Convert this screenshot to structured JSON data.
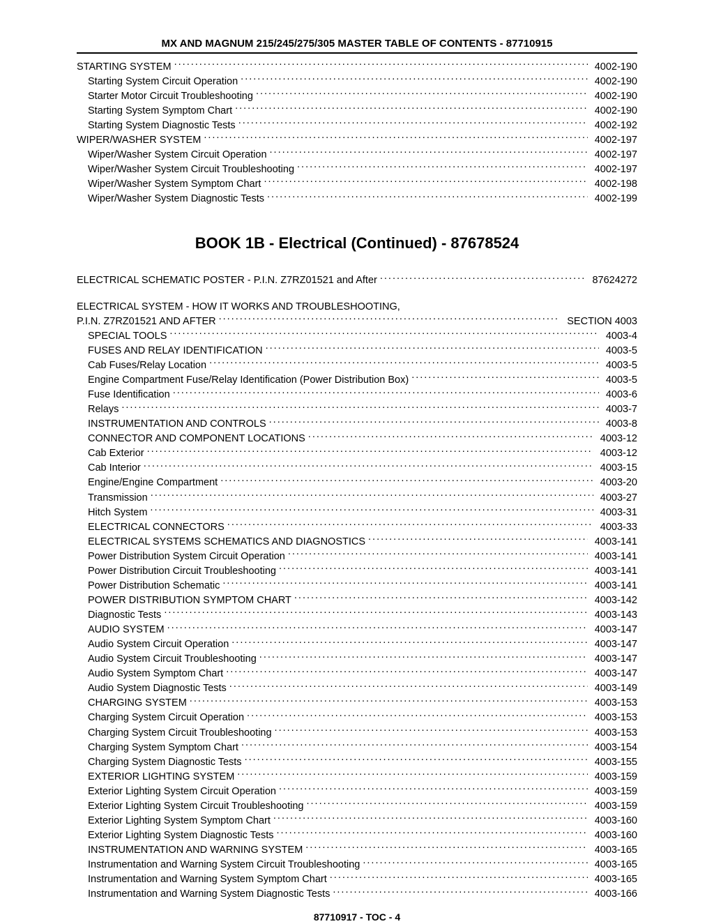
{
  "header": {
    "title": "MX AND MAGNUM 215/245/275/305 MASTER TABLE OF CONTENTS - 87710915"
  },
  "top_section": [
    {
      "label": "STARTING SYSTEM",
      "page": "4002-190",
      "indent": 0
    },
    {
      "label": "Starting System Circuit Operation",
      "page": "4002-190",
      "indent": 1
    },
    {
      "label": "Starter Motor Circuit Troubleshooting",
      "page": "4002-190",
      "indent": 1
    },
    {
      "label": "Starting System Symptom Chart",
      "page": "4002-190",
      "indent": 1
    },
    {
      "label": "Starting System Diagnostic Tests",
      "page": "4002-192",
      "indent": 1
    },
    {
      "label": "WIPER/WASHER SYSTEM",
      "page": "4002-197",
      "indent": 0
    },
    {
      "label": "Wiper/Washer System Circuit Operation",
      "page": "4002-197",
      "indent": 1
    },
    {
      "label": "Wiper/Washer System Circuit Troubleshooting",
      "page": "4002-197",
      "indent": 1
    },
    {
      "label": "Wiper/Washer System Symptom Chart",
      "page": "4002-198",
      "indent": 1
    },
    {
      "label": "Wiper/Washer System Diagnostic Tests",
      "page": "4002-199",
      "indent": 1
    }
  ],
  "book_title": "BOOK 1B - Electrical (Continued) - 87678524",
  "poster": {
    "label": "ELECTRICAL SCHEMATIC POSTER - P.I.N. Z7RZ01521 and After",
    "page": "87624272"
  },
  "system_header_line1": "ELECTRICAL SYSTEM - HOW IT WORKS AND TROUBLESHOOTING,",
  "system_header_line2": {
    "label": "P.I.N. Z7RZ01521 AND AFTER",
    "page": "SECTION 4003"
  },
  "main_section": [
    {
      "label": "SPECIAL TOOLS",
      "page": "4003-4",
      "indent": 1
    },
    {
      "label": "FUSES AND RELAY IDENTIFICATION",
      "page": "4003-5",
      "indent": 1
    },
    {
      "label": "Cab Fuses/Relay Location",
      "page": "4003-5",
      "indent": 2
    },
    {
      "label": "Engine Compartment Fuse/Relay Identification (Power Distribution Box)",
      "page": "4003-5",
      "indent": 2
    },
    {
      "label": "Fuse Identification",
      "page": "4003-6",
      "indent": 2
    },
    {
      "label": "Relays",
      "page": "4003-7",
      "indent": 2
    },
    {
      "label": "INSTRUMENTATION AND CONTROLS",
      "page": "4003-8",
      "indent": 1
    },
    {
      "label": "CONNECTOR AND COMPONENT LOCATIONS",
      "page": "4003-12",
      "indent": 1
    },
    {
      "label": "Cab Exterior",
      "page": "4003-12",
      "indent": 2
    },
    {
      "label": "Cab Interior",
      "page": "4003-15",
      "indent": 2
    },
    {
      "label": "Engine/Engine Compartment",
      "page": "4003-20",
      "indent": 2
    },
    {
      "label": "Transmission",
      "page": "4003-27",
      "indent": 2
    },
    {
      "label": "Hitch System",
      "page": "4003-31",
      "indent": 2
    },
    {
      "label": "ELECTRICAL CONNECTORS",
      "page": "4003-33",
      "indent": 1
    },
    {
      "label": "ELECTRICAL SYSTEMS SCHEMATICS AND DIAGNOSTICS",
      "page": "4003-141",
      "indent": 1
    },
    {
      "label": "Power Distribution System Circuit Operation",
      "page": "4003-141",
      "indent": 2
    },
    {
      "label": "Power Distribution Circuit Troubleshooting",
      "page": "4003-141",
      "indent": 2
    },
    {
      "label": "Power Distribution Schematic",
      "page": "4003-141",
      "indent": 2
    },
    {
      "label": "POWER DISTRIBUTION SYMPTOM CHART",
      "page": "4003-142",
      "indent": 1
    },
    {
      "label": "Diagnostic Tests",
      "page": "4003-143",
      "indent": 2
    },
    {
      "label": "AUDIO SYSTEM",
      "page": "4003-147",
      "indent": 1
    },
    {
      "label": "Audio System Circuit Operation",
      "page": "4003-147",
      "indent": 2
    },
    {
      "label": "Audio System Circuit Troubleshooting",
      "page": "4003-147",
      "indent": 2
    },
    {
      "label": "Audio System Symptom Chart",
      "page": "4003-147",
      "indent": 2
    },
    {
      "label": "Audio System Diagnostic Tests",
      "page": "4003-149",
      "indent": 2
    },
    {
      "label": "CHARGING SYSTEM",
      "page": "4003-153",
      "indent": 1
    },
    {
      "label": "Charging System Circuit Operation",
      "page": "4003-153",
      "indent": 2
    },
    {
      "label": "Charging System Circuit Troubleshooting",
      "page": "4003-153",
      "indent": 2
    },
    {
      "label": "Charging System Symptom Chart",
      "page": "4003-154",
      "indent": 2
    },
    {
      "label": "Charging System Diagnostic Tests",
      "page": "4003-155",
      "indent": 2
    },
    {
      "label": "EXTERIOR LIGHTING SYSTEM",
      "page": "4003-159",
      "indent": 1
    },
    {
      "label": "Exterior Lighting System Circuit Operation",
      "page": "4003-159",
      "indent": 2
    },
    {
      "label": "Exterior Lighting System Circuit Troubleshooting",
      "page": "4003-159",
      "indent": 2
    },
    {
      "label": "Exterior Lighting System Symptom Chart",
      "page": "4003-160",
      "indent": 2
    },
    {
      "label": "Exterior Lighting System Diagnostic Tests",
      "page": "4003-160",
      "indent": 2
    },
    {
      "label": "INSTRUMENTATION AND WARNING SYSTEM",
      "page": "4003-165",
      "indent": 1
    },
    {
      "label": "Instrumentation and Warning System Circuit Troubleshooting",
      "page": "4003-165",
      "indent": 2
    },
    {
      "label": "Instrumentation and Warning System Symptom Chart",
      "page": "4003-165",
      "indent": 2
    },
    {
      "label": "Instrumentation and Warning System Diagnostic Tests",
      "page": "4003-166",
      "indent": 2
    }
  ],
  "footer": "87710917 - TOC - 4"
}
